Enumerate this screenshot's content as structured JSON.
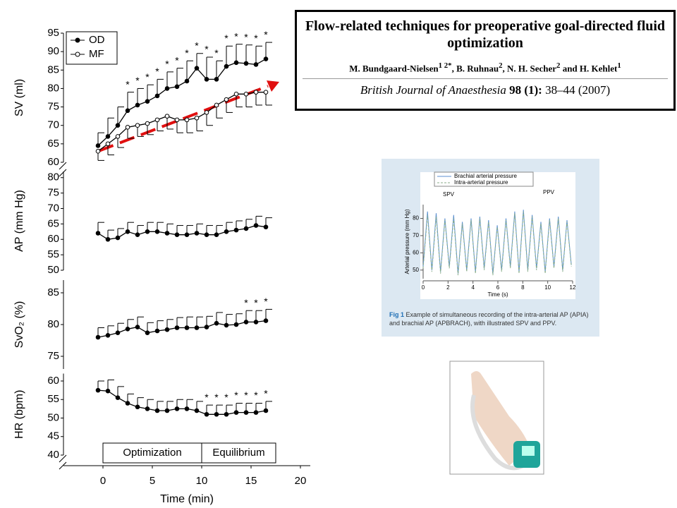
{
  "chart_data": [
    {
      "type": "line",
      "ylabel": "SV (ml)",
      "xlim": [
        -4,
        21
      ],
      "ylim": [
        60,
        95
      ],
      "yticks": [
        60,
        65,
        70,
        75,
        80,
        85,
        90,
        95
      ],
      "x": [
        -0.5,
        0.5,
        1.5,
        2.5,
        3.5,
        4.5,
        5.5,
        6.5,
        7.5,
        8.5,
        9.5,
        10.5,
        11.5,
        12.5,
        13.5,
        14.5,
        15.5,
        16.5
      ],
      "legend": "upper left",
      "series": [
        {
          "name": "OD",
          "color": "#000000",
          "marker": "filled",
          "error_side": "up",
          "values": [
            64.5,
            67,
            70,
            74,
            75.5,
            76.5,
            78,
            80,
            80.5,
            82,
            85.5,
            82.5,
            82.5,
            86,
            87,
            86.8,
            86.5,
            88
          ],
          "errors": [
            3.5,
            5,
            5,
            5,
            4.5,
            4.5,
            4.5,
            4.5,
            5,
            5.5,
            4,
            6,
            5,
            5.5,
            5,
            5,
            5,
            4.5
          ]
        },
        {
          "name": "MF",
          "color": "#000000",
          "marker": "open",
          "error_side": "down",
          "values": [
            63,
            65,
            67,
            69.5,
            70,
            70.5,
            71.5,
            72.5,
            71.5,
            71.5,
            72,
            73.5,
            75.5,
            77,
            78.5,
            78.5,
            79,
            79
          ],
          "errors": [
            2.5,
            3,
            3,
            3,
            3,
            3,
            3,
            3.5,
            3.5,
            3.5,
            3.5,
            3.5,
            3.5,
            3.5,
            3.5,
            3.5,
            3.5,
            3.5
          ]
        }
      ],
      "significance": {
        "label": "*",
        "x": [
          2.5,
          3.5,
          4.5,
          5.5,
          6.5,
          7.5,
          8.5,
          9.5,
          10.5,
          11.5,
          12.5,
          13.5,
          14.5,
          15.5,
          16.5
        ]
      }
    },
    {
      "type": "line",
      "ylabel": "AP (mm Hg)",
      "xlim": [
        -4,
        21
      ],
      "ylim": [
        50,
        82
      ],
      "yticks": [
        50,
        55,
        60,
        65,
        70,
        75,
        80
      ],
      "x": [
        -0.5,
        0.5,
        1.5,
        2.5,
        3.5,
        4.5,
        5.5,
        6.5,
        7.5,
        8.5,
        9.5,
        10.5,
        11.5,
        12.5,
        13.5,
        14.5,
        15.5,
        16.5
      ],
      "series": [
        {
          "color": "#000000",
          "marker": "filled",
          "error_side": "up",
          "values": [
            62,
            60,
            60.5,
            62.5,
            61.5,
            62.5,
            62.5,
            62,
            61.5,
            61.5,
            62,
            61.5,
            61.5,
            62.5,
            63,
            63.5,
            64.5,
            64
          ],
          "errors": [
            3.5,
            3,
            3,
            3,
            3,
            3,
            3,
            3,
            3,
            3,
            3,
            3,
            3,
            3,
            3,
            3,
            3,
            3
          ]
        }
      ]
    },
    {
      "type": "line",
      "ylabel": "SvO₂ (%)",
      "xlim": [
        -4,
        21
      ],
      "ylim": [
        73,
        87
      ],
      "yticks": [
        75,
        80,
        85
      ],
      "x": [
        -0.5,
        0.5,
        1.5,
        2.5,
        3.5,
        4.5,
        5.5,
        6.5,
        7.5,
        8.5,
        9.5,
        10.5,
        11.5,
        12.5,
        13.5,
        14.5,
        15.5,
        16.5
      ],
      "series": [
        {
          "color": "#000000",
          "marker": "filled",
          "error_side": "up",
          "values": [
            78,
            78.3,
            78.7,
            79.3,
            79.6,
            78.7,
            79,
            79.2,
            79.5,
            79.5,
            79.5,
            79.6,
            80.2,
            79.9,
            80,
            80.4,
            80.4,
            80.6
          ],
          "errors": [
            1.5,
            1.5,
            1.5,
            1.5,
            1.6,
            1.6,
            1.6,
            1.6,
            1.6,
            1.7,
            1.7,
            1.7,
            1.7,
            1.7,
            1.7,
            1.8,
            1.8,
            1.8
          ]
        }
      ],
      "significance": {
        "label": "*",
        "x": [
          14.5,
          15.5,
          16.5
        ]
      }
    },
    {
      "type": "line",
      "ylabel": "HR (bpm)",
      "xlabel": "Time (min)",
      "xlim": [
        -4,
        21
      ],
      "xticks": [
        0,
        5,
        10,
        15,
        20
      ],
      "ylim": [
        40,
        62
      ],
      "yticks": [
        40,
        45,
        50,
        55,
        60
      ],
      "x": [
        -0.5,
        0.5,
        1.5,
        2.5,
        3.5,
        4.5,
        5.5,
        6.5,
        7.5,
        8.5,
        9.5,
        10.5,
        11.5,
        12.5,
        13.5,
        14.5,
        15.5,
        16.5
      ],
      "series": [
        {
          "color": "#000000",
          "marker": "filled",
          "error_side": "up",
          "values": [
            57.5,
            57.3,
            55.5,
            54,
            53,
            52.5,
            52,
            52,
            52.5,
            52.5,
            52,
            51,
            51,
            51,
            51.5,
            51.5,
            51.5,
            52
          ],
          "errors": [
            2.5,
            3,
            3,
            2.5,
            2.5,
            2.5,
            2.5,
            2.5,
            2.5,
            2.5,
            2.5,
            2.5,
            2.5,
            2.5,
            2.5,
            2.5,
            2.5,
            2.5
          ]
        }
      ],
      "significance": {
        "label": "*",
        "x": [
          10.5,
          11.5,
          12.5,
          13.5,
          14.5,
          15.5,
          16.5
        ]
      },
      "phases": [
        {
          "name": "Optimization",
          "start": 0,
          "end": 10
        },
        {
          "name": "Equilibrium",
          "start": 10,
          "end": 17.5
        }
      ]
    },
    {
      "type": "line",
      "ylabel": "Arterial pressure (mm Hg)",
      "xlabel": "Time (s)",
      "xlim": [
        0,
        12
      ],
      "xticks": [
        0,
        2,
        4,
        6,
        8,
        10,
        12
      ],
      "ylim": [
        45,
        88
      ],
      "yticks": [
        50,
        60,
        70,
        80
      ],
      "x": [
        0,
        0.35,
        0.7,
        1.05,
        1.4,
        1.75,
        2.1,
        2.45,
        2.8,
        3.15,
        3.5,
        3.85,
        4.2,
        4.55,
        4.9,
        5.25,
        5.6,
        5.95,
        6.3,
        6.65,
        7,
        7.35,
        7.7,
        8.05,
        8.4,
        8.75,
        9.1,
        9.45,
        9.8,
        10.15,
        10.5,
        10.85,
        11.2,
        11.55,
        11.9
      ],
      "series": [
        {
          "name": "Brachial arterial pressure",
          "color": "#5b8fd0",
          "dash": false,
          "values": [
            52,
            84,
            50,
            83,
            49,
            80,
            52,
            82,
            48,
            78,
            50,
            80,
            49,
            81,
            51,
            79,
            48,
            76,
            50,
            80,
            52,
            84,
            49,
            85,
            50,
            82,
            51,
            78,
            49,
            80,
            52,
            81,
            50,
            79,
            53
          ]
        },
        {
          "name": "Intra-arterial pressure",
          "color": "#8aae8a",
          "dash": true,
          "values": [
            51,
            82,
            49,
            81,
            48,
            79,
            51,
            80,
            47,
            77,
            49,
            79,
            48,
            80,
            50,
            78,
            47,
            75,
            49,
            79,
            51,
            83,
            48,
            84,
            49,
            81,
            50,
            77,
            48,
            79,
            51,
            80,
            49,
            78,
            52
          ]
        }
      ],
      "annotations": [
        "SPV",
        "PPV"
      ],
      "caption_label": "Fig 1",
      "caption": "Example of simultaneous recording of the intra-arterial AP (APIA) and brachial AP (APBRACH), with illustrated SPV and PPV."
    }
  ],
  "citation": {
    "title": "Flow-related techniques for preoperative goal-directed fluid optimization",
    "authors": [
      {
        "name": "M. Bundgaard-Nielsen",
        "affil": "1 2*"
      },
      {
        "name": "B. Ruhnau",
        "affil": "2"
      },
      {
        "name": "N. H. Secher",
        "affil": "2"
      },
      {
        "name": "H. Kehlet",
        "affil": "1"
      }
    ],
    "journal": "British Journal of Anaesthesia",
    "volume": "98",
    "issue": "(1):",
    "pages": "38–44 (2007)"
  }
}
